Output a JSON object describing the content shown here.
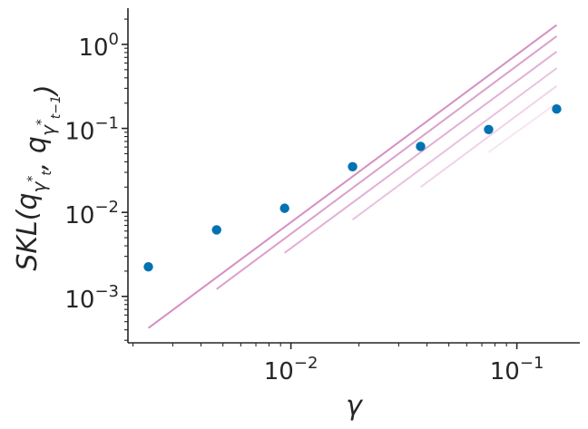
{
  "chart_data": {
    "type": "scatter",
    "title": "",
    "xlabel": "γ",
    "ylabel": "SKL(q_{γ*_t}, q_{γ*_{t-1}})",
    "xscale": "log",
    "yscale": "log",
    "xlim": [
      0.0019,
      0.19
    ],
    "ylim": [
      0.00028,
      2.7
    ],
    "grid": false,
    "x_ticks": [
      {
        "value": 0.01,
        "mantissa": "10",
        "exponent": "−2"
      },
      {
        "value": 0.1,
        "mantissa": "10",
        "exponent": "−1"
      }
    ],
    "y_ticks": [
      {
        "value": 0.001,
        "mantissa": "10",
        "exponent": "−3"
      },
      {
        "value": 0.01,
        "mantissa": "10",
        "exponent": "−2"
      },
      {
        "value": 0.1,
        "mantissa": "10",
        "exponent": "−1"
      },
      {
        "value": 1,
        "mantissa": "10",
        "exponent": "0"
      }
    ],
    "points": {
      "color": "#0072b2",
      "x": [
        0.00234,
        0.00469,
        0.00938,
        0.01875,
        0.0375,
        0.075,
        0.15
      ],
      "y": [
        0.00225,
        0.0062,
        0.0112,
        0.035,
        0.061,
        0.097,
        0.17
      ]
    },
    "reference_lines": [
      {
        "x": [
          0.00234,
          0.15
        ],
        "y": [
          0.00042,
          1.7
        ],
        "color": "#d58fc4",
        "opacity": 1.0
      },
      {
        "x": [
          0.00469,
          0.15
        ],
        "y": [
          0.00122,
          1.25
        ],
        "color": "#d58fc4",
        "opacity": 0.85
      },
      {
        "x": [
          0.00938,
          0.15
        ],
        "y": [
          0.0033,
          0.82
        ],
        "color": "#d58fc4",
        "opacity": 0.7
      },
      {
        "x": [
          0.01875,
          0.15
        ],
        "y": [
          0.0082,
          0.52
        ],
        "color": "#d58fc4",
        "opacity": 0.55
      },
      {
        "x": [
          0.0375,
          0.15
        ],
        "y": [
          0.02,
          0.32
        ],
        "color": "#d58fc4",
        "opacity": 0.38
      },
      {
        "x": [
          0.075,
          0.15
        ],
        "y": [
          0.052,
          0.2
        ],
        "color": "#d58fc4",
        "opacity": 0.22
      }
    ]
  }
}
